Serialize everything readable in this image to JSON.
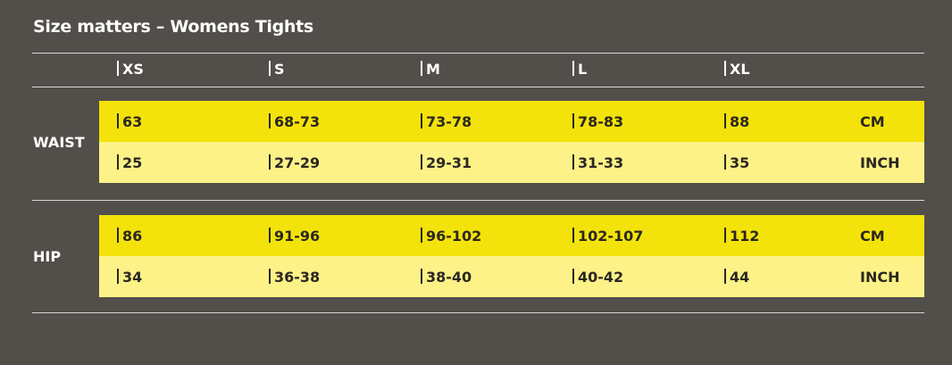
{
  "title": "Size matters – Womens Tights",
  "sizes": [
    "XS",
    "S",
    "M",
    "L",
    "XL"
  ],
  "groups": [
    {
      "label": "WAIST",
      "rows": [
        {
          "unit": "CM",
          "values": [
            "63",
            "68-73",
            "73-78",
            "78-83",
            "88"
          ]
        },
        {
          "unit": "INCH",
          "values": [
            "25",
            "27-29",
            "29-31",
            "31-33",
            "35"
          ]
        }
      ]
    },
    {
      "label": "HIP",
      "rows": [
        {
          "unit": "CM",
          "values": [
            "86",
            "91-96",
            "96-102",
            "102-107",
            "112"
          ]
        },
        {
          "unit": "INCH",
          "values": [
            "34",
            "36-38",
            "38-40",
            "40-42",
            "44"
          ]
        }
      ]
    }
  ],
  "colors": {
    "background": "#524e4a",
    "cm_row": "#f3e30a",
    "inch_row": "#fdf287"
  }
}
